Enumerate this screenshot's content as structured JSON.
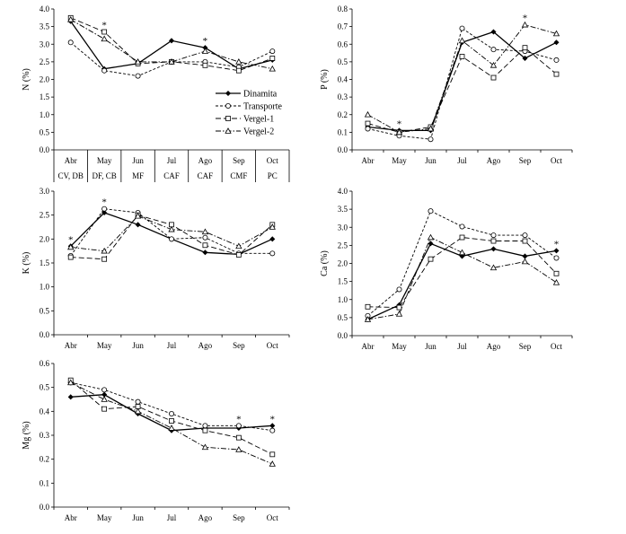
{
  "months": [
    "Abr",
    "May",
    "Jun",
    "Jul",
    "Ago",
    "Sep",
    "Oct"
  ],
  "phenology_labels": [
    "CV, DB",
    "DF, CB",
    "MF",
    "CAF",
    "CAF",
    "CMF",
    "PC"
  ],
  "legend": {
    "position": "right",
    "entries": [
      {
        "name": "Dinamita",
        "marker": "diamond-filled",
        "dash": "solid"
      },
      {
        "name": "Transporte",
        "marker": "circle-open",
        "dash": "short-dash"
      },
      {
        "name": "Vergel-1",
        "marker": "square-open",
        "dash": "long-dash"
      },
      {
        "name": "Vergel-2",
        "marker": "triangle-open",
        "dash": "dash-dot"
      }
    ]
  },
  "significance_symbol": "*",
  "chart_data": [
    {
      "id": "N",
      "type": "line",
      "ylabel": "N (%)",
      "ylim": [
        0,
        4.0
      ],
      "ytick_step": 0.5,
      "ytick_decimals": 1,
      "categories": [
        "Abr",
        "May",
        "Jun",
        "Jul",
        "Ago",
        "Sep",
        "Oct"
      ],
      "significance": [
        1,
        4
      ],
      "series": [
        {
          "name": "Dinamita",
          "values": [
            3.65,
            2.3,
            2.45,
            3.1,
            2.9,
            2.3,
            2.55
          ]
        },
        {
          "name": "Transporte",
          "values": [
            3.05,
            2.25,
            2.1,
            2.5,
            2.5,
            2.35,
            2.8
          ]
        },
        {
          "name": "Vergel-1",
          "values": [
            3.75,
            3.35,
            2.45,
            2.5,
            2.4,
            2.25,
            2.6
          ]
        },
        {
          "name": "Vergel-2",
          "values": [
            3.7,
            3.15,
            2.5,
            2.5,
            2.8,
            2.5,
            2.3
          ]
        }
      ]
    },
    {
      "id": "P",
      "type": "line",
      "ylabel": "P (%)",
      "ylim": [
        0,
        0.8
      ],
      "ytick_step": 0.1,
      "ytick_decimals": 1,
      "categories": [
        "Abr",
        "May",
        "Jun",
        "Jul",
        "Ago",
        "Sep",
        "Oct"
      ],
      "significance": [
        1,
        5
      ],
      "series": [
        {
          "name": "Dinamita",
          "values": [
            0.13,
            0.11,
            0.11,
            0.61,
            0.67,
            0.52,
            0.61
          ]
        },
        {
          "name": "Transporte",
          "values": [
            0.12,
            0.08,
            0.06,
            0.69,
            0.57,
            0.56,
            0.51
          ]
        },
        {
          "name": "Vergel-1",
          "values": [
            0.15,
            0.1,
            0.13,
            0.53,
            0.41,
            0.58,
            0.43
          ]
        },
        {
          "name": "Vergel-2",
          "values": [
            0.2,
            0.1,
            0.12,
            0.62,
            0.48,
            0.71,
            0.66
          ]
        }
      ]
    },
    {
      "id": "K",
      "type": "line",
      "ylabel": "K (%)",
      "ylim": [
        0,
        3.0
      ],
      "ytick_step": 0.5,
      "ytick_decimals": 1,
      "categories": [
        "Abr",
        "May",
        "Jun",
        "Jul",
        "Ago",
        "Sep",
        "Oct"
      ],
      "significance": [
        0,
        1
      ],
      "series": [
        {
          "name": "Dinamita",
          "values": [
            1.85,
            2.55,
            2.3,
            2.0,
            1.72,
            1.68,
            2.0
          ]
        },
        {
          "name": "Transporte",
          "values": [
            1.65,
            2.63,
            2.55,
            2.0,
            2.03,
            1.7,
            1.7
          ]
        },
        {
          "name": "Vergel-1",
          "values": [
            1.62,
            1.58,
            2.5,
            2.3,
            1.87,
            1.67,
            2.3
          ]
        },
        {
          "name": "Vergel-2",
          "values": [
            1.83,
            1.75,
            2.48,
            2.2,
            2.15,
            1.85,
            2.25
          ]
        }
      ]
    },
    {
      "id": "Ca",
      "type": "line",
      "ylabel": "Ca (%)",
      "ylim": [
        0,
        4.0
      ],
      "ytick_step": 0.5,
      "ytick_decimals": 1,
      "categories": [
        "Abr",
        "May",
        "Jun",
        "Jul",
        "Ago",
        "Sep",
        "Oct"
      ],
      "significance": [
        6
      ],
      "series": [
        {
          "name": "Dinamita",
          "values": [
            0.45,
            0.85,
            2.55,
            2.2,
            2.4,
            2.2,
            2.35
          ]
        },
        {
          "name": "Transporte",
          "values": [
            0.55,
            1.28,
            3.45,
            3.02,
            2.78,
            2.78,
            2.15
          ]
        },
        {
          "name": "Vergel-1",
          "values": [
            0.8,
            0.78,
            2.12,
            2.72,
            2.62,
            2.62,
            1.72
          ]
        },
        {
          "name": "Vergel-2",
          "values": [
            0.45,
            0.6,
            2.72,
            2.3,
            1.88,
            2.05,
            1.47
          ]
        }
      ]
    },
    {
      "id": "Mg",
      "type": "line",
      "ylabel": "Mg (%)",
      "ylim": [
        0,
        0.6
      ],
      "ytick_step": 0.1,
      "ytick_decimals": 1,
      "categories": [
        "Abr",
        "May",
        "Jun",
        "Jul",
        "Ago",
        "Sep",
        "Oct"
      ],
      "significance": [
        5,
        6
      ],
      "series": [
        {
          "name": "Dinamita",
          "values": [
            0.46,
            0.47,
            0.39,
            0.32,
            0.33,
            0.33,
            0.34
          ]
        },
        {
          "name": "Transporte",
          "values": [
            0.52,
            0.49,
            0.44,
            0.39,
            0.34,
            0.34,
            0.32
          ]
        },
        {
          "name": "Vergel-1",
          "values": [
            0.53,
            0.41,
            0.42,
            0.36,
            0.32,
            0.29,
            0.22
          ]
        },
        {
          "name": "Vergel-2",
          "values": [
            0.52,
            0.45,
            0.4,
            0.33,
            0.25,
            0.24,
            0.18
          ]
        }
      ]
    }
  ]
}
